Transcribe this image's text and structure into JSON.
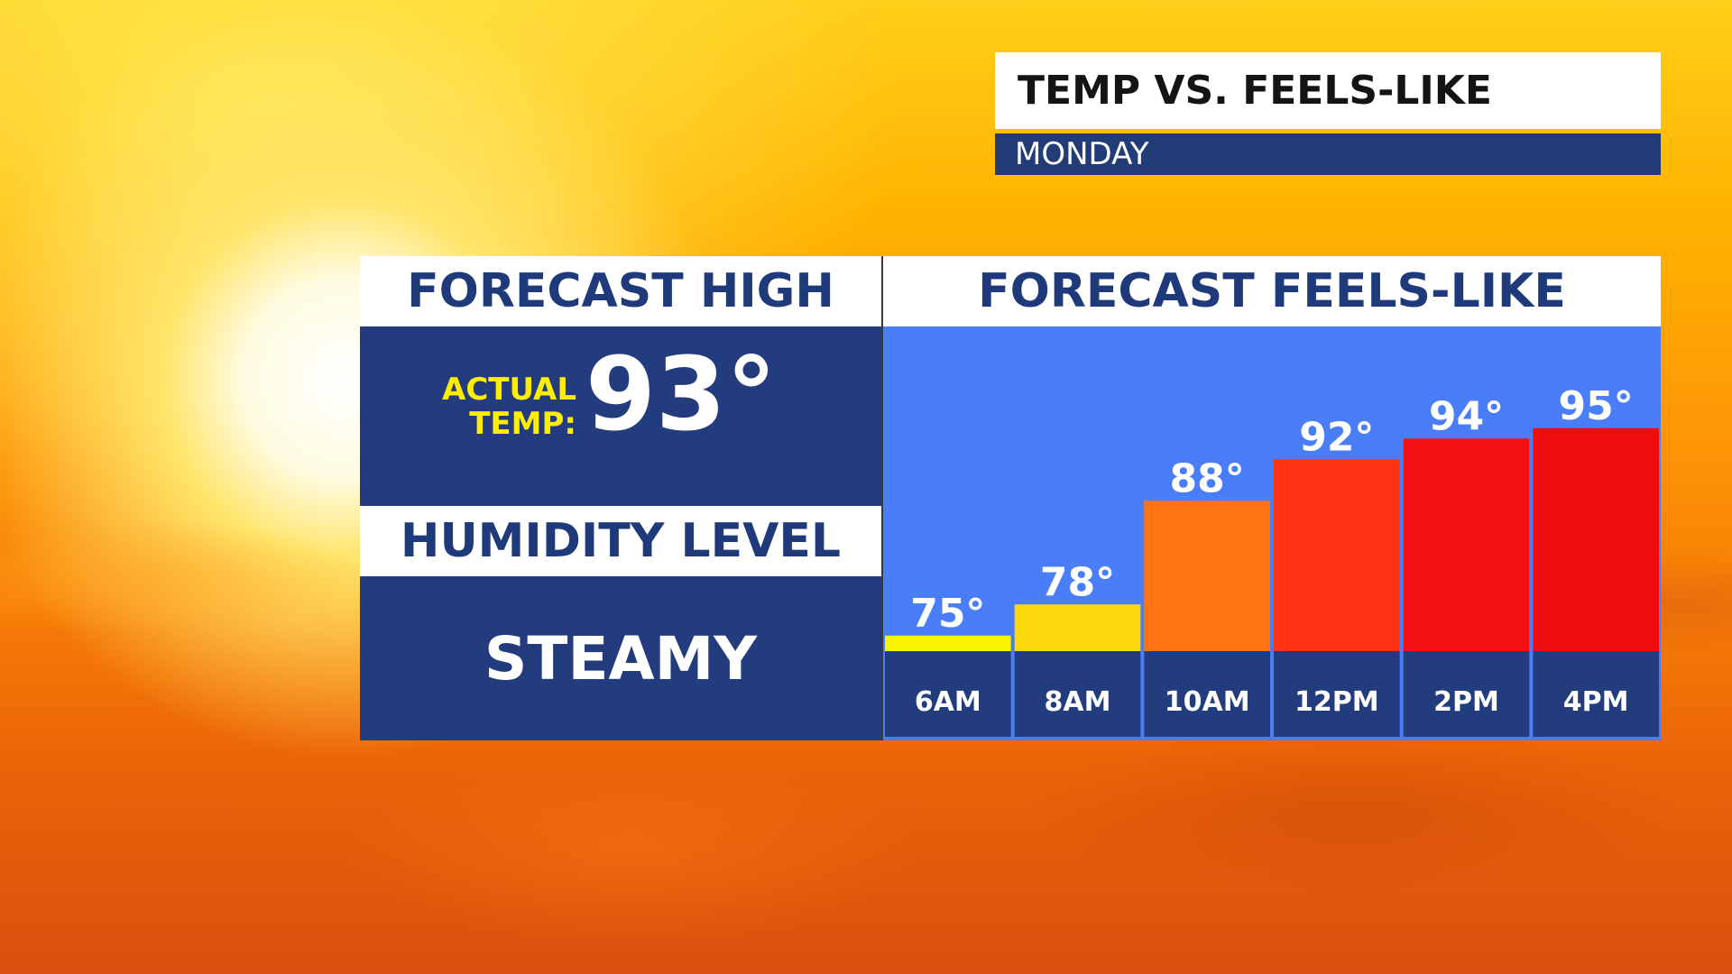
{
  "header": {
    "title": "TEMP VS. FEELS-LIKE",
    "subtitle": "MONDAY"
  },
  "left_panel": {
    "forecast_high_title": "FORECAST HIGH",
    "actual_label_line1": "ACTUAL",
    "actual_label_line2": "TEMP:",
    "actual_temp": "93°",
    "humidity_title": "HUMIDITY LEVEL",
    "humidity_value": "STEAMY"
  },
  "chart_data": {
    "type": "bar",
    "title": "FORECAST FEELS-LIKE",
    "categories": [
      "6AM",
      "8AM",
      "10AM",
      "12PM",
      "2PM",
      "4PM"
    ],
    "values": [
      75,
      78,
      88,
      92,
      94,
      95
    ],
    "value_labels": [
      "75°",
      "78°",
      "88°",
      "92°",
      "94°",
      "95°"
    ],
    "bar_colors": [
      "#f8f400",
      "#fcd90f",
      "#ff7410",
      "#ff3414",
      "#f31212",
      "#ee0e10"
    ],
    "colors": {
      "panel_navy": "#223c7e",
      "bar_background": "#4a7ef9",
      "label_white": "#ffffff",
      "accent_yellow": "#ffee00"
    }
  }
}
